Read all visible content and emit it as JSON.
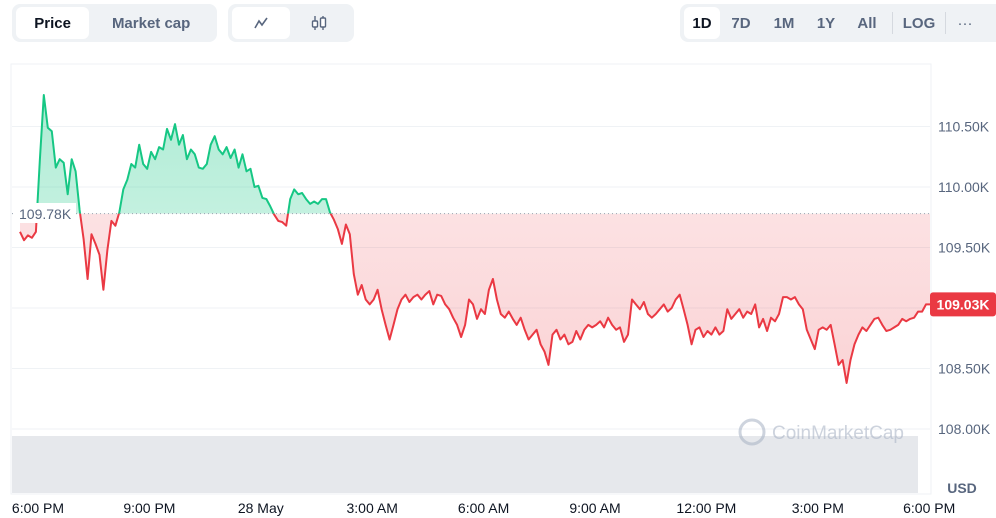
{
  "toolbar": {
    "view_tabs": [
      {
        "label": "Price",
        "active": true
      },
      {
        "label": "Market cap",
        "active": false
      }
    ],
    "chart_type_tabs": [
      {
        "icon": "line-chart-icon",
        "active": true
      },
      {
        "icon": "candlestick-icon",
        "active": false
      }
    ],
    "ranges": [
      {
        "label": "1D",
        "active": true
      },
      {
        "label": "7D"
      },
      {
        "label": "1M"
      },
      {
        "label": "1Y"
      },
      {
        "label": "All"
      }
    ],
    "log_label": "LOG",
    "more_label": "···"
  },
  "watermark": "CoinMarketCap",
  "colors": {
    "up": "#16c784",
    "down": "#ea3943",
    "grid": "#eff2f5",
    "volume": "#e6e8ec"
  },
  "chart_data": {
    "type": "area",
    "title": "",
    "currency_label": "USD",
    "baseline": 109.78,
    "baseline_label": "109.78K",
    "current_label": "109.03K",
    "ylim": [
      107.8,
      111.1
    ],
    "yticks": [
      {
        "value": 110.5,
        "label": "110.50K"
      },
      {
        "value": 110.0,
        "label": "110.00K"
      },
      {
        "value": 109.5,
        "label": "109.50K"
      },
      {
        "value": 109.0,
        "label": ""
      },
      {
        "value": 108.5,
        "label": "108.50K"
      },
      {
        "value": 108.0,
        "label": "108.00K"
      }
    ],
    "xticks": [
      "6:00 PM",
      "9:00 PM",
      "28 May",
      "3:00 AM",
      "6:00 AM",
      "9:00 AM",
      "12:00 PM",
      "3:00 PM",
      "6:00 PM"
    ],
    "time_range": [
      "27 May 17:32",
      "28 May 18:00"
    ],
    "grid": true,
    "values_unit": "K USD",
    "values": [
      109.63,
      109.56,
      109.6,
      109.58,
      109.63,
      110.23,
      110.76,
      110.49,
      110.46,
      110.16,
      110.23,
      110.2,
      109.94,
      110.23,
      110.13,
      109.81,
      109.57,
      109.24,
      109.61,
      109.53,
      109.44,
      109.15,
      109.48,
      109.72,
      109.68,
      109.79,
      109.98,
      110.06,
      110.19,
      110.16,
      110.35,
      110.19,
      110.15,
      110.29,
      110.23,
      110.33,
      110.31,
      110.48,
      110.39,
      110.52,
      110.35,
      110.43,
      110.23,
      110.31,
      110.27,
      110.16,
      110.15,
      110.19,
      110.35,
      110.42,
      110.31,
      110.27,
      110.33,
      110.24,
      110.31,
      110.16,
      110.27,
      110.13,
      110.15,
      110.0,
      110.01,
      109.91,
      109.9,
      109.84,
      109.77,
      109.72,
      109.71,
      109.68,
      109.9,
      109.98,
      109.94,
      109.95,
      109.9,
      109.86,
      109.88,
      109.86,
      109.9,
      109.9,
      109.79,
      109.73,
      109.65,
      109.53,
      109.69,
      109.61,
      109.28,
      109.11,
      109.19,
      109.07,
      109.03,
      109.07,
      109.15,
      108.99,
      108.86,
      108.74,
      108.86,
      108.99,
      109.07,
      109.11,
      109.05,
      109.09,
      109.11,
      109.07,
      109.11,
      109.14,
      109.03,
      109.11,
      109.1,
      109.03,
      108.99,
      108.92,
      108.86,
      108.76,
      108.86,
      109.07,
      109.03,
      108.91,
      108.99,
      108.95,
      109.15,
      109.24,
      109.07,
      108.95,
      108.92,
      108.97,
      108.91,
      108.86,
      108.92,
      108.82,
      108.74,
      108.78,
      108.82,
      108.7,
      108.64,
      108.53,
      108.78,
      108.82,
      108.74,
      108.78,
      108.7,
      108.72,
      108.81,
      108.74,
      108.82,
      108.86,
      108.84,
      108.86,
      108.89,
      108.84,
      108.92,
      108.86,
      108.82,
      108.84,
      108.72,
      108.78,
      109.07,
      109.03,
      108.99,
      109.05,
      108.95,
      108.92,
      108.95,
      108.99,
      109.03,
      108.97,
      109.0,
      109.07,
      109.11,
      108.99,
      108.86,
      108.7,
      108.82,
      108.84,
      108.76,
      108.81,
      108.78,
      108.84,
      108.78,
      108.81,
      108.99,
      108.91,
      108.95,
      108.99,
      108.92,
      108.97,
      108.95,
      109.03,
      108.84,
      108.91,
      108.81,
      108.92,
      108.89,
      108.95,
      109.09,
      109.09,
      109.07,
      109.09,
      109.03,
      108.99,
      108.82,
      108.74,
      108.66,
      108.82,
      108.84,
      108.82,
      108.86,
      108.7,
      108.53,
      108.57,
      108.38,
      108.57,
      108.7,
      108.78,
      108.84,
      108.81,
      108.86,
      108.91,
      108.92,
      108.86,
      108.81,
      108.82,
      108.84,
      108.86,
      108.91,
      108.89,
      108.91,
      108.92,
      108.97,
      108.97,
      109.03,
      109.03
    ]
  }
}
